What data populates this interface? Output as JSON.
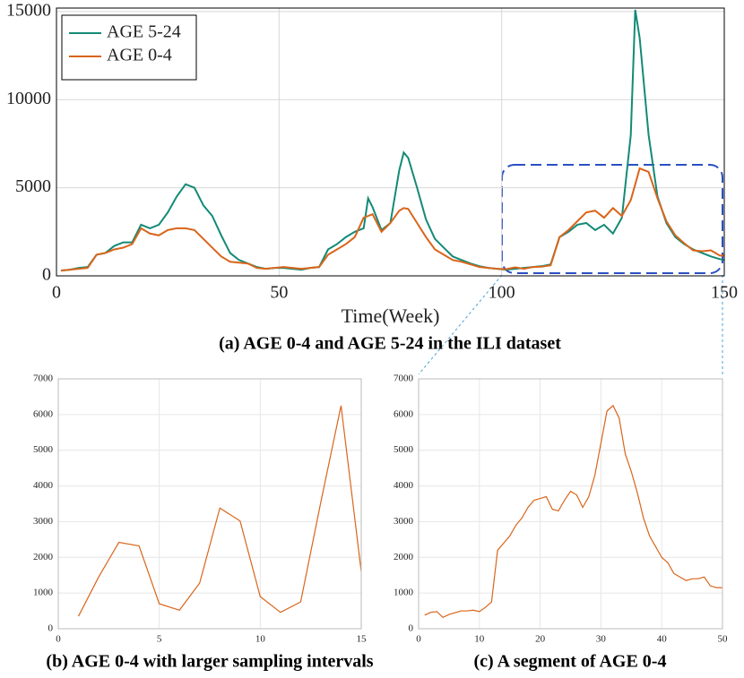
{
  "chart_data": [
    {
      "type": "line",
      "title": "(a) AGE 0-4 and AGE 5-24 in the ILI dataset",
      "xlabel": "Time(Week)",
      "x": [
        1,
        3,
        5,
        7,
        9,
        11,
        13,
        15,
        17,
        19,
        21,
        23,
        25,
        27,
        29,
        31,
        33,
        35,
        37,
        39,
        41,
        43,
        45,
        47,
        49,
        51,
        53,
        55,
        57,
        59,
        61,
        63,
        65,
        67,
        69,
        70,
        71,
        73,
        75,
        77,
        78,
        79,
        81,
        83,
        85,
        87,
        89,
        91,
        93,
        95,
        97,
        99,
        101,
        103,
        105,
        107,
        109,
        111,
        113,
        115,
        117,
        119,
        121,
        123,
        125,
        127,
        129,
        130,
        131,
        133,
        135,
        137,
        139,
        141,
        143,
        145,
        147,
        149,
        150
      ],
      "series": [
        {
          "name": "AGE 5-24",
          "color": "#138a76",
          "values": [
            300,
            350,
            450,
            500,
            1200,
            1300,
            1700,
            1900,
            1900,
            2900,
            2700,
            2900,
            3600,
            4500,
            5200,
            5000,
            4000,
            3400,
            2300,
            1300,
            900,
            700,
            500,
            400,
            450,
            450,
            400,
            350,
            450,
            500,
            1500,
            1800,
            2200,
            2500,
            2700,
            4400,
            3900,
            2600,
            3000,
            6000,
            7000,
            6700,
            5000,
            3200,
            2100,
            1600,
            1100,
            900,
            700,
            550,
            450,
            400,
            350,
            400,
            450,
            500,
            550,
            650,
            2200,
            2500,
            2900,
            3000,
            2600,
            2900,
            2400,
            3300,
            8000,
            15100,
            13500,
            8000,
            4500,
            3000,
            2200,
            1800,
            1500,
            1300,
            1100,
            950,
            900
          ]
        },
        {
          "name": "AGE 0-4",
          "color": "#d9651b",
          "values": [
            300,
            350,
            400,
            450,
            1200,
            1300,
            1500,
            1600,
            1800,
            2700,
            2400,
            2300,
            2600,
            2700,
            2700,
            2600,
            2100,
            1600,
            1100,
            800,
            750,
            700,
            450,
            400,
            450,
            500,
            450,
            400,
            450,
            500,
            1200,
            1500,
            1800,
            2200,
            3300,
            3400,
            3500,
            2500,
            3000,
            3700,
            3850,
            3800,
            3000,
            2200,
            1500,
            1200,
            900,
            800,
            650,
            500,
            450,
            400,
            380,
            480,
            400,
            500,
            520,
            600,
            2200,
            2600,
            3100,
            3600,
            3700,
            3300,
            3850,
            3400,
            4300,
            5200,
            6100,
            5900,
            4400,
            3100,
            2300,
            1850,
            1450,
            1400,
            1450,
            1150,
            1150
          ]
        }
      ],
      "xlim": [
        0,
        150
      ],
      "xticks": [
        0,
        50,
        100,
        150
      ],
      "ylim": [
        0,
        15200
      ],
      "yticks": [
        0,
        5000,
        10000,
        15000
      ],
      "grid": true,
      "legend": "upper left"
    },
    {
      "type": "line",
      "title": "(b) AGE 0-4 with larger sampling intervals",
      "color": "#d9651b",
      "x": [
        1,
        2,
        3,
        4,
        5,
        6,
        7,
        8,
        9,
        10,
        11,
        12,
        13,
        14,
        15
      ],
      "values": [
        350,
        1450,
        2420,
        2320,
        700,
        520,
        1280,
        3380,
        3020,
        900,
        460,
        750,
        3550,
        6250,
        1600
      ],
      "xlim": [
        0,
        15
      ],
      "xticks": [
        0,
        5,
        10,
        15
      ],
      "ylim": [
        0,
        7000
      ],
      "yticks": [
        0,
        1000,
        2000,
        3000,
        4000,
        5000,
        6000,
        7000
      ],
      "grid": true
    },
    {
      "type": "line",
      "title": "(c) A segment of AGE 0-4",
      "color": "#d9651b",
      "x": [
        1,
        2,
        3,
        4,
        5,
        6,
        7,
        8,
        9,
        10,
        11,
        12,
        13,
        14,
        15,
        16,
        17,
        18,
        19,
        20,
        21,
        22,
        23,
        24,
        25,
        26,
        27,
        28,
        29,
        30,
        31,
        32,
        33,
        34,
        35,
        36,
        37,
        38,
        39,
        40,
        41,
        42,
        43,
        44,
        45,
        46,
        47,
        48,
        49,
        50
      ],
      "values": [
        380,
        460,
        480,
        320,
        400,
        450,
        500,
        500,
        520,
        480,
        600,
        750,
        2200,
        2400,
        2600,
        2900,
        3100,
        3400,
        3600,
        3650,
        3700,
        3350,
        3300,
        3600,
        3850,
        3750,
        3400,
        3700,
        4300,
        5200,
        6100,
        6250,
        5900,
        4900,
        4400,
        3800,
        3100,
        2600,
        2300,
        2000,
        1850,
        1550,
        1450,
        1350,
        1400,
        1400,
        1450,
        1200,
        1150,
        1150
      ],
      "xlim": [
        0,
        50
      ],
      "xticks": [
        0,
        10,
        20,
        30,
        40,
        50
      ],
      "ylim": [
        0,
        7000
      ],
      "yticks": [
        0,
        1000,
        2000,
        3000,
        4000,
        5000,
        6000,
        7000
      ],
      "grid": true
    }
  ]
}
